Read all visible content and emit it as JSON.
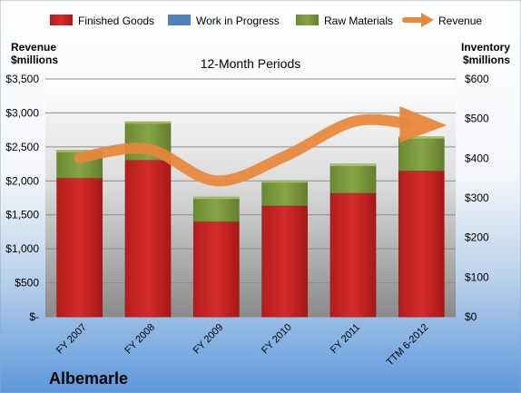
{
  "chart_data": {
    "type": "bar",
    "subtitle": "12-Month Periods",
    "company": "Albemarle",
    "left_axis_title": [
      "Revenue",
      "$millions"
    ],
    "right_axis_title": [
      "Inventory",
      "$millions"
    ],
    "categories": [
      "FY 2007",
      "FY 2008",
      "FY 2009",
      "FY 2010",
      "FY 2011",
      "TTM 6-2012"
    ],
    "series": [
      {
        "name": "Finished Goods",
        "color": "#cc2222",
        "values": [
          350,
          395,
          240,
          280,
          312,
          368
        ]
      },
      {
        "name": "Work in Progress",
        "color": "#4f81bd",
        "values": [
          0,
          0,
          0,
          0,
          0,
          0
        ]
      },
      {
        "name": "Raw Materials",
        "color": "#77933c",
        "values": [
          70,
          97,
          62,
          63,
          73,
          86
        ]
      },
      {
        "name": "Revenue",
        "color": "#e8873a",
        "type": "line",
        "values": [
          2340,
          2470,
          2000,
          2360,
          2870,
          2830
        ]
      }
    ],
    "left_axis": {
      "min": 0,
      "max": 3500,
      "ticks": [
        "$-",
        "$500",
        "$1,000",
        "$1,500",
        "$2,000",
        "$2,500",
        "$3,000",
        "$3,500"
      ]
    },
    "right_axis": {
      "min": 0,
      "max": 600,
      "ticks": [
        "$0",
        "$100",
        "$200",
        "$300",
        "$400",
        "$500",
        "$600"
      ]
    },
    "grid": true,
    "legend_position": "top"
  }
}
